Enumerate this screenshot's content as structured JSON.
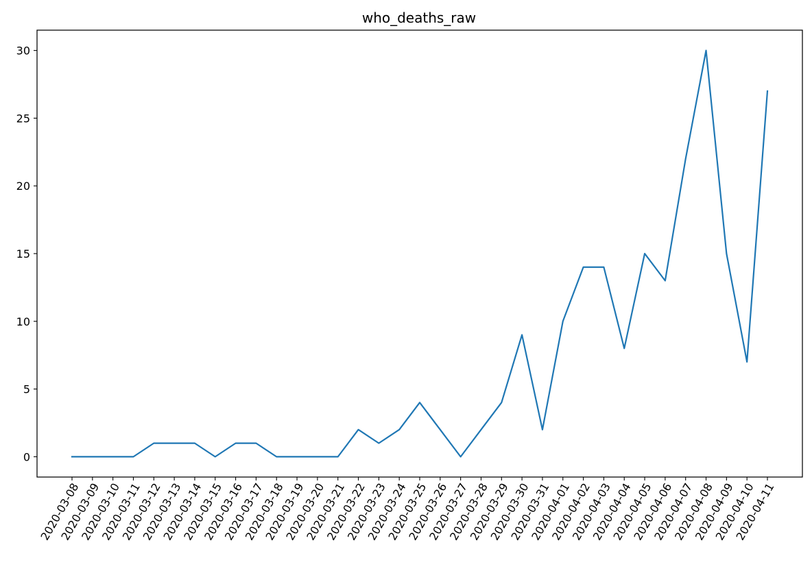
{
  "chart_data": {
    "type": "line",
    "title": "who_deaths_raw",
    "xlabel": "",
    "ylabel": "",
    "x": [
      "2020-03-08",
      "2020-03-09",
      "2020-03-10",
      "2020-03-11",
      "2020-03-12",
      "2020-03-13",
      "2020-03-14",
      "2020-03-15",
      "2020-03-16",
      "2020-03-17",
      "2020-03-18",
      "2020-03-19",
      "2020-03-20",
      "2020-03-21",
      "2020-03-22",
      "2020-03-23",
      "2020-03-24",
      "2020-03-25",
      "2020-03-26",
      "2020-03-27",
      "2020-03-28",
      "2020-03-29",
      "2020-03-30",
      "2020-03-31",
      "2020-04-01",
      "2020-04-02",
      "2020-04-03",
      "2020-04-04",
      "2020-04-05",
      "2020-04-06",
      "2020-04-07",
      "2020-04-08",
      "2020-04-09",
      "2020-04-10",
      "2020-04-11"
    ],
    "series": [
      {
        "values": [
          0,
          0,
          0,
          0,
          1,
          1,
          1,
          0,
          1,
          1,
          0,
          0,
          0,
          0,
          2,
          1,
          2,
          4,
          2,
          0,
          2,
          4,
          9,
          2,
          10,
          14,
          14,
          8,
          15,
          13,
          22,
          30,
          15,
          7,
          27
        ],
        "color": "#1f77b4"
      }
    ],
    "ylim": [
      -1.5,
      31.5
    ],
    "yticks": [
      0,
      5,
      10,
      15,
      20,
      25,
      30
    ],
    "grid": false,
    "legend": "none"
  }
}
